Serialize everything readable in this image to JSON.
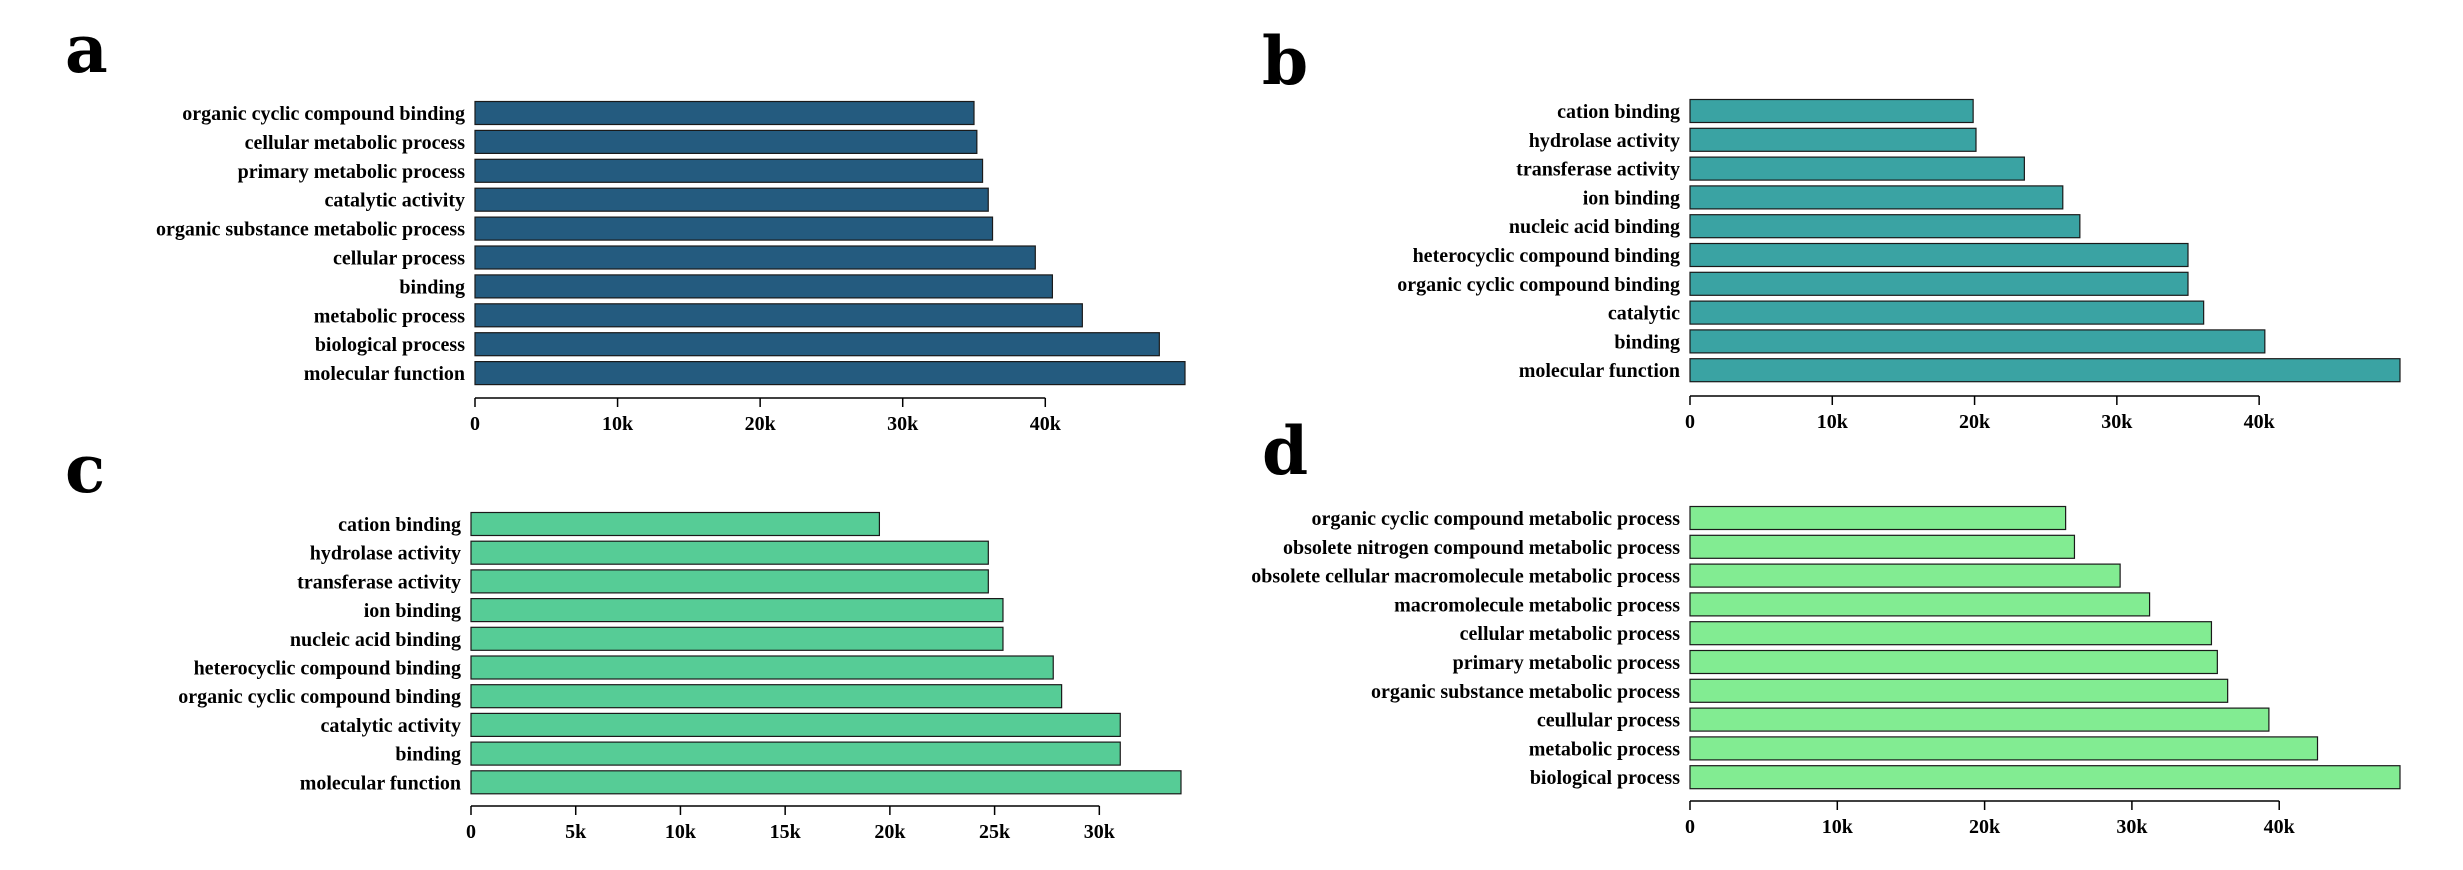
{
  "chart_data": [
    {
      "type": "bar",
      "orientation": "horizontal",
      "panel_label": "a",
      "color": "#245b7f",
      "categories": [
        "organic cyclic compound binding",
        "cellular metabolic process",
        "primary metabolic process",
        "catalytic activity",
        "organic substance metabolic process",
        "cellular process",
        "binding",
        "metabolic process",
        "biological process",
        "molecular function"
      ],
      "values": [
        35000,
        35200,
        35600,
        36000,
        36300,
        39300,
        40500,
        42600,
        48000,
        49800
      ],
      "xlim": [
        0,
        49800
      ],
      "ticks": [
        0,
        10000,
        20000,
        30000,
        40000
      ],
      "tick_labels": [
        "0",
        "10k",
        "20k",
        "30k",
        "40k"
      ],
      "grid": false,
      "legend": "none"
    },
    {
      "type": "bar",
      "orientation": "horizontal",
      "panel_label": "b",
      "color": "#3aa3a3",
      "categories": [
        "cation binding",
        "hydrolase activity",
        "transferase activity",
        "ion binding",
        "nucleic acid binding",
        "heterocyclic compound binding",
        "organic cyclic compound binding",
        "catalytic",
        "binding",
        "molecular function"
      ],
      "values": [
        19900,
        20100,
        23500,
        26200,
        27400,
        35000,
        35000,
        36100,
        40400,
        49900
      ],
      "xlim": [
        0,
        49900
      ],
      "ticks": [
        0,
        10000,
        20000,
        30000,
        40000
      ],
      "tick_labels": [
        "0",
        "10k",
        "20k",
        "30k",
        "40k"
      ],
      "grid": false,
      "legend": "none"
    },
    {
      "type": "bar",
      "orientation": "horizontal",
      "panel_label": "c",
      "color": "#56cc96",
      "categories": [
        "cation binding",
        "hydrolase activity",
        "transferase activity",
        "ion binding",
        "nucleic acid binding",
        "heterocyclic compound binding",
        "organic cyclic compound binding",
        "catalytic activity",
        "binding",
        "molecular function"
      ],
      "values": [
        19500,
        24700,
        24700,
        25400,
        25400,
        27800,
        28200,
        31000,
        31000,
        33900
      ],
      "xlim": [
        0,
        33900
      ],
      "ticks": [
        0,
        5000,
        10000,
        15000,
        20000,
        25000,
        30000
      ],
      "tick_labels": [
        "0",
        "5k",
        "10k",
        "15k",
        "20k",
        "25k",
        "30k"
      ],
      "grid": false,
      "legend": "none"
    },
    {
      "type": "bar",
      "orientation": "horizontal",
      "panel_label": "d",
      "color": "#82ec92",
      "categories": [
        "organic cyclic compound metabolic process",
        "obsolete nitrogen compound metabolic process",
        "obsolete cellular macromolecule metabolic process",
        "macromolecule metabolic process",
        "cellular metabolic process",
        "primary metabolic process",
        "organic substance metabolic process",
        "ceullular process",
        "metabolic process",
        "biological process"
      ],
      "values": [
        25500,
        26100,
        29200,
        31200,
        35400,
        35800,
        36500,
        39300,
        42600,
        48200
      ],
      "xlim": [
        0,
        48200
      ],
      "ticks": [
        0,
        10000,
        20000,
        30000,
        40000
      ],
      "tick_labels": [
        "0",
        "10k",
        "20k",
        "30k",
        "40k"
      ],
      "grid": false,
      "legend": "none"
    }
  ]
}
